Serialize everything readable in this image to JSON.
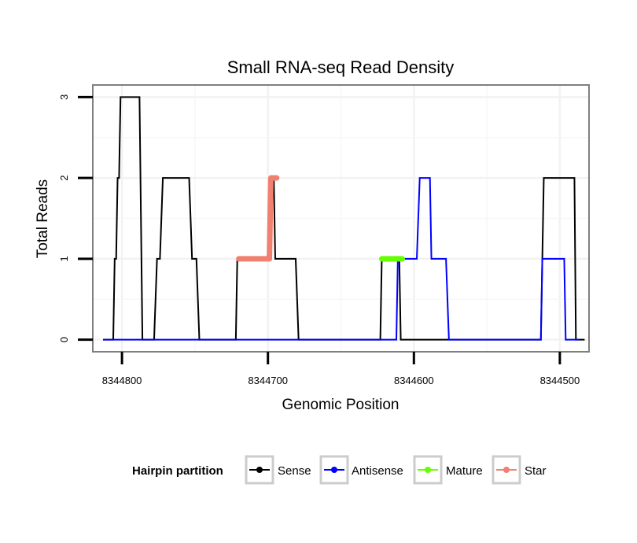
{
  "chart_data": {
    "type": "line",
    "title": "Small RNA-seq Read Density",
    "xlabel": "Genomic Position",
    "ylabel": "Total Reads",
    "x_reversed": true,
    "xlim": [
      8344820,
      8344480
    ],
    "ylim": [
      -0.15,
      3.15
    ],
    "x_ticks": [
      8344800,
      8344700,
      8344600,
      8344500
    ],
    "x_tick_labels": [
      "8344800",
      "8344700",
      "8344600",
      "8344500"
    ],
    "y_ticks": [
      0,
      1,
      2,
      3
    ],
    "y_tick_labels": [
      "0",
      "1",
      "2",
      "3"
    ],
    "grid": true,
    "series": [
      {
        "name": "Sense",
        "color": "#000000",
        "points": [
          [
            8344813,
            0
          ],
          [
            8344806,
            0
          ],
          [
            8344805,
            1
          ],
          [
            8344804,
            1
          ],
          [
            8344803,
            2
          ],
          [
            8344802,
            2
          ],
          [
            8344801,
            3
          ],
          [
            8344788,
            3
          ],
          [
            8344786,
            0
          ],
          [
            8344778,
            0
          ],
          [
            8344776,
            1
          ],
          [
            8344774,
            1
          ],
          [
            8344772,
            2
          ],
          [
            8344754,
            2
          ],
          [
            8344752,
            1
          ],
          [
            8344749,
            1
          ],
          [
            8344747,
            0
          ],
          [
            8344722,
            0
          ],
          [
            8344721,
            1
          ],
          [
            8344699,
            1
          ],
          [
            8344698,
            2
          ],
          [
            8344696,
            2
          ],
          [
            8344695,
            1
          ],
          [
            8344681,
            1
          ],
          [
            8344679,
            0
          ],
          [
            8344623,
            0
          ],
          [
            8344622,
            1
          ],
          [
            8344610,
            1
          ],
          [
            8344609,
            0
          ],
          [
            8344513,
            0
          ],
          [
            8344511,
            2
          ],
          [
            8344490,
            2
          ],
          [
            8344489,
            0
          ],
          [
            8344483,
            0
          ]
        ]
      },
      {
        "name": "Antisense",
        "color": "#0000ff",
        "points": [
          [
            8344813,
            0
          ],
          [
            8344612,
            0
          ],
          [
            8344611,
            1
          ],
          [
            8344598,
            1
          ],
          [
            8344596,
            2
          ],
          [
            8344589,
            2
          ],
          [
            8344588,
            1
          ],
          [
            8344578,
            1
          ],
          [
            8344576,
            0
          ],
          [
            8344513,
            0
          ],
          [
            8344512,
            1
          ],
          [
            8344497,
            1
          ],
          [
            8344496,
            0
          ],
          [
            8344487,
            0
          ]
        ]
      },
      {
        "name": "Mature",
        "color": "#66ff00",
        "points": [
          [
            8344622,
            1
          ],
          [
            8344608,
            1
          ]
        ]
      },
      {
        "name": "Star",
        "color": "#f08070",
        "points": [
          [
            8344720,
            1
          ],
          [
            8344699,
            1
          ],
          [
            8344698,
            2
          ],
          [
            8344694,
            2
          ]
        ]
      }
    ],
    "legend": {
      "title": "Hairpin partition",
      "position": "bottom",
      "entries": [
        "Sense",
        "Antisense",
        "Mature",
        "Star"
      ]
    }
  }
}
